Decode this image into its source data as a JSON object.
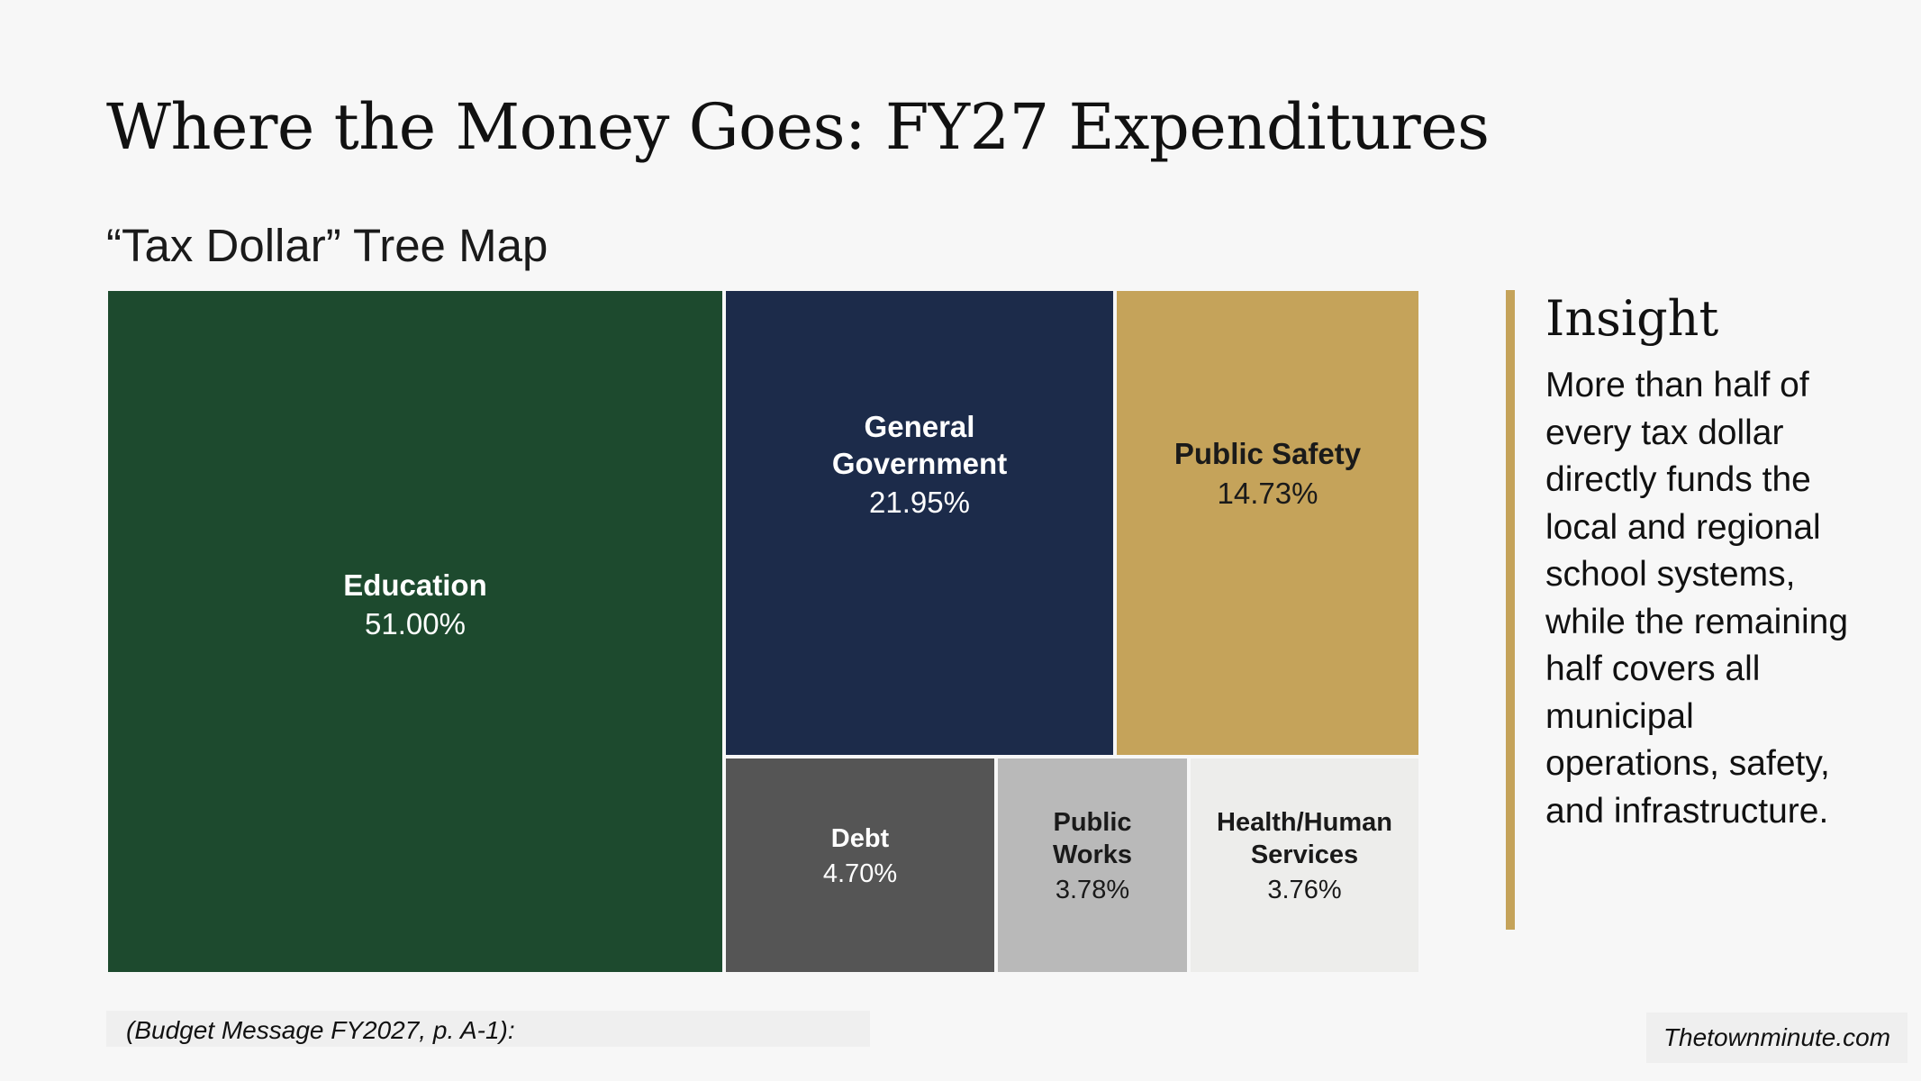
{
  "slide": {
    "title": "Where the Money Goes: FY27 Expenditures",
    "subtitle": "“Tax Dollar” Tree Map",
    "source": "(Budget Message FY2027, p. A-1):",
    "watermark": "Thetownminute.com"
  },
  "insight": {
    "title": "Insight",
    "body": "More than half of every tax dollar directly funds the local and regional school systems, while the remaining half covers all municipal operations, safety, and infrastructure.",
    "accent_color": "#c5a35a"
  },
  "chart_data": {
    "type": "treemap",
    "title": "“Tax Dollar” Tree Map",
    "unit": "%",
    "items": [
      {
        "name": "Education",
        "label": "51.00%",
        "value": 51.0,
        "color": "#1d4a2e",
        "text_color": "#ffffff"
      },
      {
        "name": "General Government",
        "label": "21.95%",
        "value": 21.95,
        "color": "#1c2b4a",
        "text_color": "#ffffff"
      },
      {
        "name": "Public Safety",
        "label": "14.73%",
        "value": 14.73,
        "color": "#c5a35a",
        "text_color": "#1a1a1a"
      },
      {
        "name": "Debt",
        "label": "4.70%",
        "value": 4.7,
        "color": "#555555",
        "text_color": "#ffffff"
      },
      {
        "name": "Public Works",
        "label": "3.78%",
        "value": 3.78,
        "color": "#b9b9b9",
        "text_color": "#1a1a1a"
      },
      {
        "name": "Health/Human Services",
        "label": "3.76%",
        "value": 3.76,
        "color": "#ededeb",
        "text_color": "#1a1a1a"
      }
    ]
  }
}
